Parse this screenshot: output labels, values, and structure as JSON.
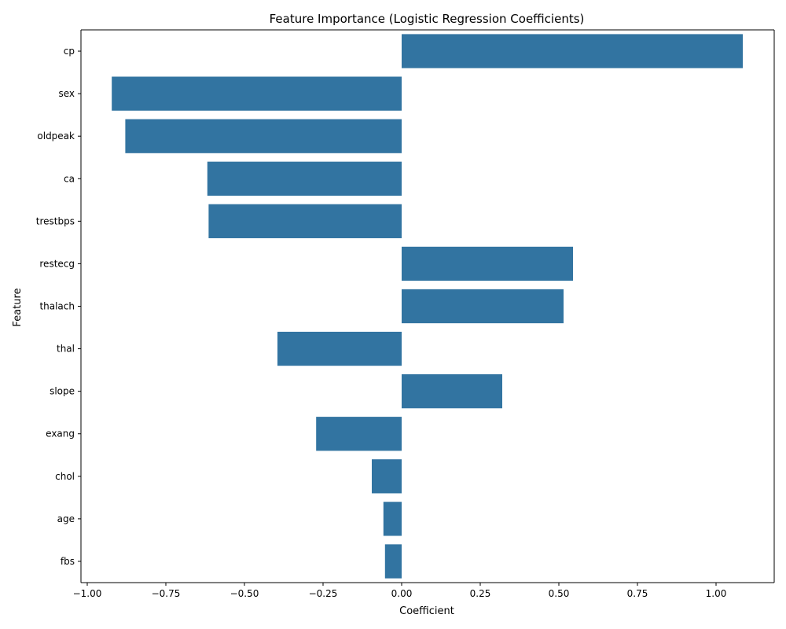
{
  "chart_data": {
    "type": "bar",
    "orientation": "horizontal",
    "title": "Feature Importance (Logistic Regression Coefficients)",
    "xlabel": "Coefficient",
    "ylabel": "Feature",
    "categories": [
      "cp",
      "sex",
      "oldpeak",
      "ca",
      "trestbps",
      "restecg",
      "thalach",
      "thal",
      "slope",
      "exang",
      "chol",
      "age",
      "fbs"
    ],
    "values": [
      1.085,
      -0.922,
      -0.879,
      -0.618,
      -0.614,
      0.545,
      0.515,
      -0.395,
      0.32,
      -0.272,
      -0.095,
      -0.058,
      -0.053
    ],
    "xlim": [
      -1.02,
      1.185
    ],
    "xticks": [
      -1.0,
      -0.75,
      -0.5,
      -0.25,
      0.0,
      0.25,
      0.5,
      0.75,
      1.0
    ],
    "xtick_labels": [
      "−1.00",
      "−0.75",
      "−0.50",
      "−0.25",
      "0.00",
      "0.25",
      "0.50",
      "0.75",
      "1.00"
    ],
    "grid": false,
    "bar_color": "#3274a1"
  }
}
